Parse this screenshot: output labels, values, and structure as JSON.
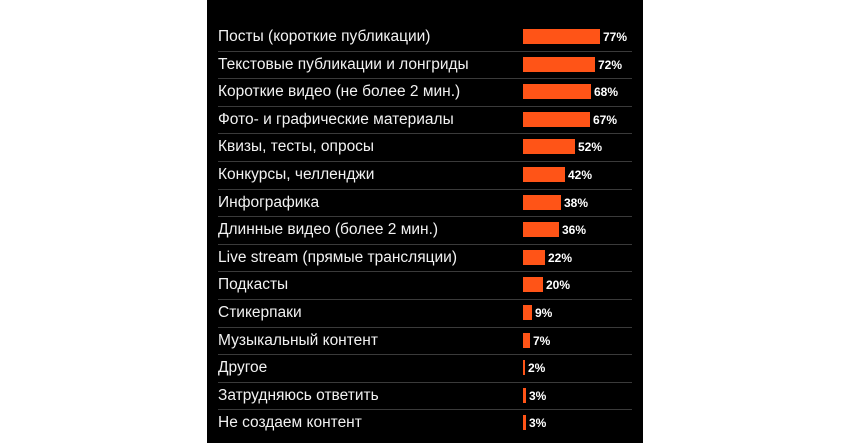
{
  "colors": {
    "background": "#000000",
    "bar": "#ff5417",
    "text": "#f2f2f2",
    "separator": "#3a3a3a"
  },
  "chart_data": {
    "type": "bar",
    "orientation": "horizontal",
    "title": "",
    "xlabel": "",
    "ylabel": "",
    "value_suffix": "%",
    "categories": [
      "Посты (короткие публикации)",
      "Текстовые публикации и лонгриды",
      "Короткие видео (не более 2 мин.)",
      "Фото- и графические материалы",
      "Квизы, тесты, опросы",
      "Конкурсы, челленджи",
      "Инфографика",
      "Длинные видео (более 2 мин.)",
      "Live stream (прямые трансляции)",
      "Подкасты",
      "Стикерпаки",
      "Музыкальный контент",
      "Другое",
      "Затрудняюсь ответить",
      "Не создаем контент"
    ],
    "values": [
      77,
      72,
      68,
      67,
      52,
      42,
      38,
      36,
      22,
      20,
      9,
      7,
      2,
      3,
      3
    ],
    "xlim": [
      0,
      100
    ],
    "grid": false,
    "legend": "none"
  }
}
